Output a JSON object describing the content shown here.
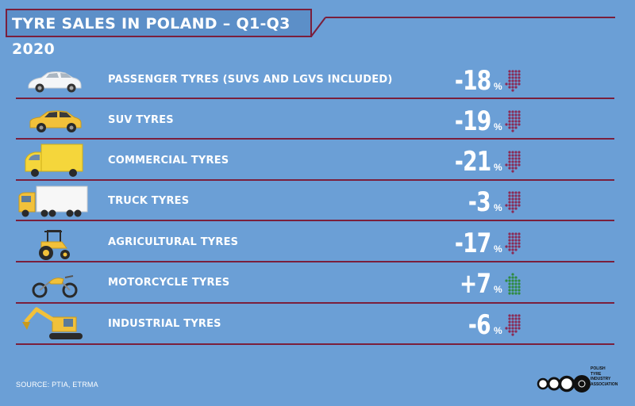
{
  "title": "TYRE SALES IN POLAND – Q1-Q3 2020",
  "colors": {
    "background": "#6b9fd6",
    "divider": "#7a1f3c",
    "down_arrow": "#8b2a55",
    "up_arrow": "#2e8b3f"
  },
  "rows": [
    {
      "label": "PASSENGER TYRES (SUVS AND LGVS INCLUDED)",
      "value": "-18",
      "unit": "%",
      "trend": "down",
      "icon": "passenger-car-icon"
    },
    {
      "label": "SUV TYRES",
      "value": "-19",
      "unit": "%",
      "trend": "down",
      "icon": "suv-icon"
    },
    {
      "label": "COMMERCIAL TYRES",
      "value": "-21",
      "unit": "%",
      "trend": "down",
      "icon": "van-icon"
    },
    {
      "label": "TRUCK TYRES",
      "value": "-3",
      "unit": "%",
      "trend": "down",
      "icon": "truck-icon"
    },
    {
      "label": "AGRICULTURAL TYRES",
      "value": "-17",
      "unit": "%",
      "trend": "down",
      "icon": "tractor-icon"
    },
    {
      "label": "MOTORCYCLE TYRES",
      "value": "+7",
      "unit": "%",
      "trend": "up",
      "icon": "motorcycle-icon"
    },
    {
      "label": "INDUSTRIAL TYRES",
      "value": "-6",
      "unit": "%",
      "trend": "down",
      "icon": "excavator-icon"
    }
  ],
  "source": "SOURCE: PTIA, ETRMA",
  "logo": {
    "lines": [
      "POLISH",
      "TYRE",
      "INDUSTRY",
      "ASSOCIATION"
    ]
  }
}
